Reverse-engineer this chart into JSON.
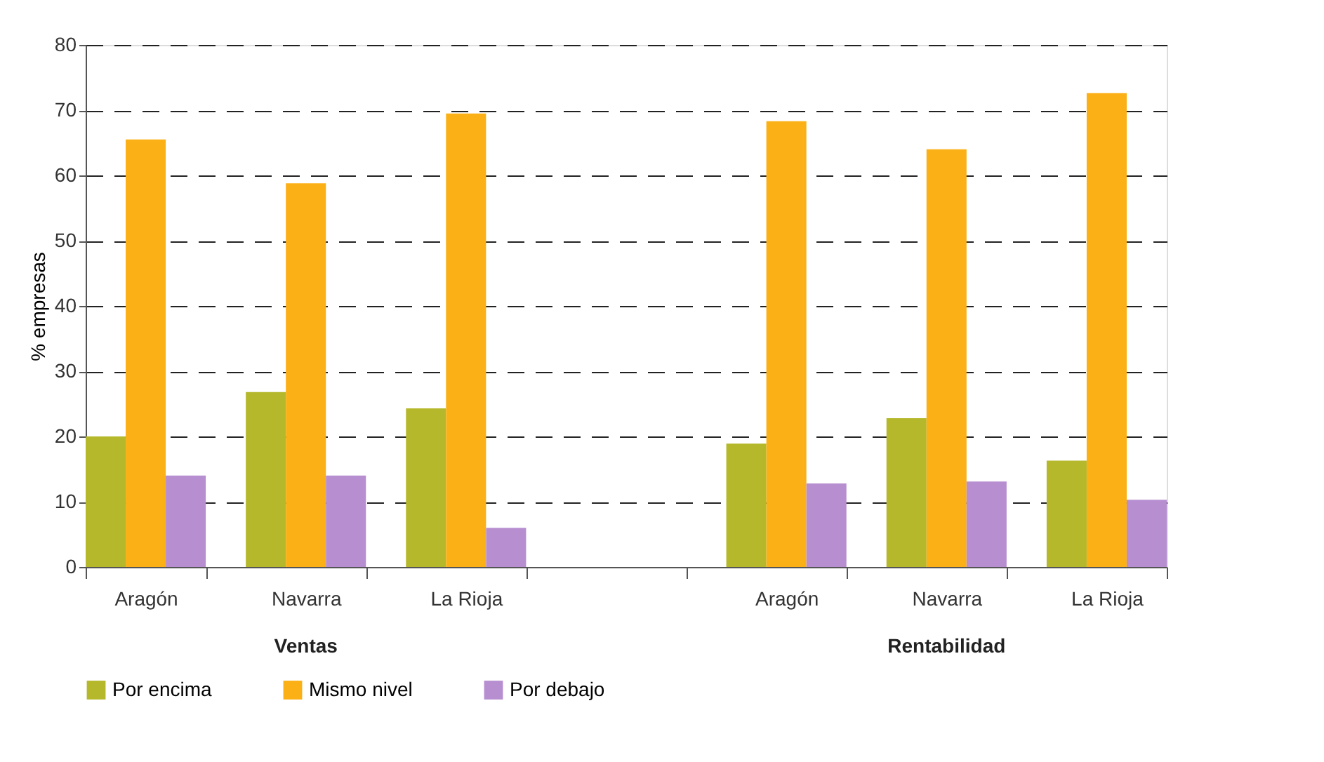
{
  "chart_data": {
    "type": "bar",
    "ylabel": "% empresas",
    "categories": [
      "Aragón",
      "Navarra",
      "La Rioja",
      null,
      "Aragón",
      "Navarra",
      "La Rioja"
    ],
    "series": [
      {
        "name": "Por encima",
        "color": "#b5b82a",
        "values": [
          20,
          26.8,
          24.3,
          null,
          18.9,
          22.8,
          16.3
        ]
      },
      {
        "name": "Mismo nivel",
        "color": "#fbb015",
        "values": [
          65.5,
          58.8,
          69.5,
          null,
          68.3,
          64.0,
          72.6
        ]
      },
      {
        "name": "Por debajo",
        "color": "#b78fd1",
        "values": [
          14,
          14,
          6,
          null,
          12.8,
          13.1,
          10.3
        ]
      }
    ],
    "ylim": [
      0,
      80
    ],
    "yticks": [
      0,
      10,
      20,
      30,
      40,
      50,
      60,
      70,
      80
    ],
    "grid": "y",
    "legend": "bottom",
    "annotations": [
      "Ventas",
      "Rentabilidad"
    ]
  }
}
